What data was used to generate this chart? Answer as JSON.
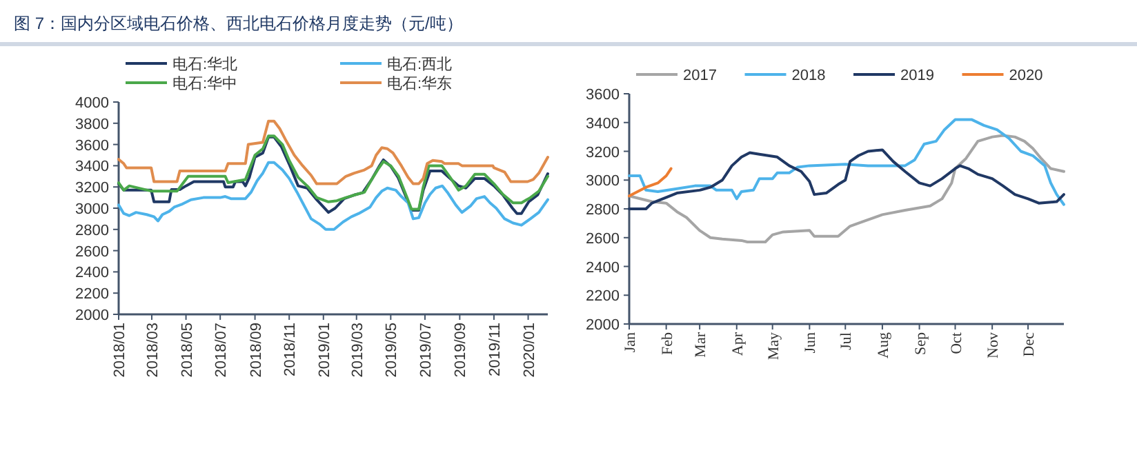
{
  "chart_data": [
    {
      "type": "line",
      "title": "图 7：国内分区域电石价格、西北电石价格月度走势（元/吨）",
      "legend": "top",
      "xlim": [
        "2018-01-01",
        "2020-02-05"
      ],
      "ylim": [
        2000,
        4000
      ],
      "xticks": [
        {
          "value": "2018-01",
          "label": "2018/01"
        },
        {
          "value": "2018-03",
          "label": "2018/03"
        },
        {
          "value": "2018-05",
          "label": "2018/05"
        },
        {
          "value": "2018-07",
          "label": "2018/07"
        },
        {
          "value": "2018-09",
          "label": "2018/09"
        },
        {
          "value": "2018-11",
          "label": "2018/11"
        },
        {
          "value": "2019-01",
          "label": "2019/01"
        },
        {
          "value": "2019-03",
          "label": "2019/03"
        },
        {
          "value": "2019-05",
          "label": "2019/05"
        },
        {
          "value": "2019-07",
          "label": "2019/07"
        },
        {
          "value": "2019-09",
          "label": "2019/09"
        },
        {
          "value": "2019-11",
          "label": "2019/11"
        },
        {
          "value": "2020-01",
          "label": "2020/01"
        }
      ],
      "yticks": [
        2000,
        2200,
        2400,
        2600,
        2800,
        3000,
        3200,
        3400,
        3600,
        3800,
        4000
      ],
      "series": [
        {
          "name": "电石:华北",
          "color": "#1f3864",
          "x": [
            "2018-01-01",
            "2018-01-10",
            "2018-02-28",
            "2018-03-05",
            "2018-04-01",
            "2018-04-05",
            "2018-04-20",
            "2018-05-01",
            "2018-05-15",
            "2018-07-07",
            "2018-07-10",
            "2018-07-24",
            "2018-07-28",
            "2018-08-10",
            "2018-08-15",
            "2018-08-22",
            "2018-09-01",
            "2018-09-15",
            "2018-09-25",
            "2018-10-05",
            "2018-10-18",
            "2018-11-01",
            "2018-11-17",
            "2018-12-03",
            "2018-12-20",
            "2019-01-10",
            "2019-01-22",
            "2019-02-07",
            "2019-02-25",
            "2019-03-12",
            "2019-03-28",
            "2019-04-10",
            "2019-04-18",
            "2019-05-01",
            "2019-05-14",
            "2019-05-30",
            "2019-06-07",
            "2019-06-20",
            "2019-06-28",
            "2019-07-10",
            "2019-07-31",
            "2019-08-17",
            "2019-08-30",
            "2019-09-12",
            "2019-09-28",
            "2019-10-15",
            "2019-11-01",
            "2019-11-17",
            "2019-12-04",
            "2019-12-12",
            "2019-12-20",
            "2020-01-02",
            "2020-01-18",
            "2020-02-05"
          ],
          "values": [
            3230,
            3170,
            3170,
            3060,
            3060,
            3175,
            3175,
            3210,
            3250,
            3250,
            3200,
            3200,
            3250,
            3250,
            3210,
            3290,
            3480,
            3520,
            3670,
            3670,
            3580,
            3415,
            3210,
            3190,
            3080,
            2960,
            3000,
            3090,
            3125,
            3145,
            3270,
            3390,
            3455,
            3395,
            3290,
            3085,
            2980,
            2980,
            3170,
            3350,
            3350,
            3270,
            3210,
            3190,
            3280,
            3280,
            3210,
            3125,
            3000,
            2950,
            2950,
            3060,
            3125,
            3325
          ]
        },
        {
          "name": "电石:西北",
          "color": "#4db3ea",
          "x": [
            "2018-01-01",
            "2018-01-10",
            "2018-01-20",
            "2018-02-01",
            "2018-02-20",
            "2018-03-05",
            "2018-03-12",
            "2018-03-20",
            "2018-04-01",
            "2018-04-10",
            "2018-04-25",
            "2018-05-10",
            "2018-06-01",
            "2018-07-01",
            "2018-07-10",
            "2018-07-20",
            "2018-08-15",
            "2018-08-25",
            "2018-09-05",
            "2018-09-15",
            "2018-09-25",
            "2018-10-05",
            "2018-10-20",
            "2018-11-01",
            "2018-11-15",
            "2018-11-25",
            "2018-12-10",
            "2018-12-25",
            "2019-01-05",
            "2019-01-20",
            "2019-02-05",
            "2019-02-20",
            "2019-03-05",
            "2019-03-25",
            "2019-04-05",
            "2019-04-15",
            "2019-04-25",
            "2019-05-10",
            "2019-05-20",
            "2019-06-01",
            "2019-06-10",
            "2019-06-20",
            "2019-07-01",
            "2019-07-10",
            "2019-07-20",
            "2019-08-01",
            "2019-08-10",
            "2019-08-25",
            "2019-09-05",
            "2019-09-20",
            "2019-10-01",
            "2019-10-15",
            "2019-10-25",
            "2019-11-05",
            "2019-11-20",
            "2019-12-05",
            "2019-12-20",
            "2020-01-05",
            "2020-01-20",
            "2020-02-05"
          ],
          "values": [
            3030,
            2950,
            2930,
            2960,
            2940,
            2920,
            2880,
            2940,
            2970,
            3010,
            3040,
            3080,
            3100,
            3100,
            3110,
            3090,
            3090,
            3150,
            3260,
            3330,
            3430,
            3430,
            3360,
            3280,
            3150,
            3050,
            2900,
            2850,
            2800,
            2800,
            2870,
            2920,
            2950,
            3010,
            3100,
            3160,
            3190,
            3170,
            3110,
            3050,
            2900,
            2910,
            3050,
            3130,
            3190,
            3210,
            3150,
            3030,
            2960,
            3020,
            3090,
            3110,
            3050,
            3000,
            2900,
            2860,
            2840,
            2900,
            2960,
            3080
          ]
        },
        {
          "name": "电石:华中",
          "color": "#4aa84a",
          "x": [
            "2018-01-01",
            "2018-01-10",
            "2018-01-20",
            "2018-03-01",
            "2018-04-15",
            "2018-04-25",
            "2018-05-05",
            "2018-07-10",
            "2018-07-15",
            "2018-08-15",
            "2018-09-01",
            "2018-09-15",
            "2018-09-25",
            "2018-10-05",
            "2018-10-20",
            "2018-11-01",
            "2018-11-17",
            "2018-12-05",
            "2018-12-20",
            "2019-01-10",
            "2019-01-25",
            "2019-02-10",
            "2019-03-01",
            "2019-03-15",
            "2019-03-28",
            "2019-04-10",
            "2019-04-18",
            "2019-05-01",
            "2019-05-15",
            "2019-05-30",
            "2019-06-07",
            "2019-06-20",
            "2019-06-28",
            "2019-07-08",
            "2019-07-31",
            "2019-08-15",
            "2019-08-30",
            "2019-09-12",
            "2019-09-28",
            "2019-10-15",
            "2019-11-01",
            "2019-11-17",
            "2019-12-05",
            "2019-12-20",
            "2020-01-05",
            "2020-01-20",
            "2020-02-05"
          ],
          "values": [
            3240,
            3170,
            3210,
            3160,
            3160,
            3230,
            3300,
            3300,
            3240,
            3270,
            3500,
            3560,
            3680,
            3680,
            3600,
            3450,
            3290,
            3200,
            3100,
            3060,
            3070,
            3100,
            3130,
            3150,
            3270,
            3380,
            3440,
            3400,
            3300,
            3100,
            2990,
            2990,
            3200,
            3400,
            3400,
            3290,
            3170,
            3210,
            3320,
            3320,
            3230,
            3130,
            3050,
            3050,
            3100,
            3160,
            3300
          ]
        },
        {
          "name": "电石:华东",
          "color": "#e08c4d",
          "x": [
            "2018-01-01",
            "2018-01-10",
            "2018-01-15",
            "2018-02-28",
            "2018-03-05",
            "2018-04-15",
            "2018-04-20",
            "2018-07-10",
            "2018-07-15",
            "2018-08-15",
            "2018-08-20",
            "2018-09-15",
            "2018-09-25",
            "2018-10-05",
            "2018-10-15",
            "2018-10-25",
            "2018-11-10",
            "2018-11-25",
            "2018-12-10",
            "2018-12-20",
            "2019-01-25",
            "2019-02-10",
            "2019-02-25",
            "2019-03-15",
            "2019-03-28",
            "2019-04-05",
            "2019-04-15",
            "2019-04-25",
            "2019-05-05",
            "2019-05-20",
            "2019-06-01",
            "2019-06-10",
            "2019-06-20",
            "2019-06-28",
            "2019-07-05",
            "2019-07-15",
            "2019-07-31",
            "2019-08-05",
            "2019-08-30",
            "2019-09-05",
            "2019-10-30",
            "2019-11-01",
            "2019-11-20",
            "2019-12-01",
            "2019-12-31",
            "2020-01-10",
            "2020-01-20",
            "2020-02-05"
          ],
          "values": [
            3460,
            3420,
            3380,
            3380,
            3250,
            3250,
            3350,
            3350,
            3420,
            3420,
            3600,
            3620,
            3820,
            3820,
            3750,
            3650,
            3500,
            3400,
            3310,
            3230,
            3230,
            3300,
            3330,
            3360,
            3400,
            3500,
            3570,
            3560,
            3520,
            3400,
            3290,
            3230,
            3230,
            3280,
            3420,
            3450,
            3440,
            3420,
            3420,
            3400,
            3400,
            3380,
            3340,
            3250,
            3250,
            3270,
            3330,
            3480
          ]
        }
      ]
    },
    {
      "type": "line",
      "legend": "top",
      "xlim": [
        "--01-01",
        "--12-31"
      ],
      "ylim": [
        2000,
        3600
      ],
      "xticks": [
        {
          "value": "--01-01",
          "label": "Jan"
        },
        {
          "value": "--02-01",
          "label": "Feb"
        },
        {
          "value": "--03-01",
          "label": "Mar"
        },
        {
          "value": "--04-01",
          "label": "Apr"
        },
        {
          "value": "--05-01",
          "label": "May"
        },
        {
          "value": "--06-01",
          "label": "Jun"
        },
        {
          "value": "--07-01",
          "label": "Jul"
        },
        {
          "value": "--08-01",
          "label": "Aug"
        },
        {
          "value": "--09-01",
          "label": "Sep"
        },
        {
          "value": "--10-01",
          "label": "Oct"
        },
        {
          "value": "--11-01",
          "label": "Nov"
        },
        {
          "value": "--12-01",
          "label": "Dec"
        }
      ],
      "yticks": [
        2000,
        2200,
        2400,
        2600,
        2800,
        3000,
        3200,
        3400,
        3600
      ],
      "series": [
        {
          "name": "2017",
          "color": "#a5a5a5",
          "x": [
            "--01-01",
            "--01-20",
            "--02-01",
            "--02-10",
            "--02-18",
            "--03-01",
            "--03-10",
            "--03-20",
            "--04-05",
            "--04-10",
            "--04-25",
            "--05-01",
            "--05-10",
            "--06-01",
            "--06-05",
            "--06-25",
            "--07-05",
            "--07-15",
            "--08-01",
            "--08-20",
            "--09-10",
            "--09-20",
            "--09-28",
            "--10-01",
            "--10-10",
            "--10-20",
            "--11-01",
            "--11-10",
            "--11-20",
            "--11-28",
            "--12-05",
            "--12-12",
            "--12-20",
            "--12-31"
          ],
          "values": [
            2890,
            2850,
            2840,
            2780,
            2740,
            2650,
            2600,
            2590,
            2580,
            2570,
            2570,
            2620,
            2640,
            2650,
            2610,
            2610,
            2680,
            2710,
            2760,
            2790,
            2820,
            2870,
            2980,
            3080,
            3150,
            3270,
            3300,
            3310,
            3300,
            3270,
            3220,
            3150,
            3080,
            3060
          ]
        },
        {
          "name": "2018",
          "color": "#4db3ea",
          "x": [
            "--01-01",
            "--01-10",
            "--01-15",
            "--01-25",
            "--02-10",
            "--02-25",
            "--03-10",
            "--03-15",
            "--03-28",
            "--04-01",
            "--04-05",
            "--04-15",
            "--04-20",
            "--05-01",
            "--05-05",
            "--05-15",
            "--05-22",
            "--06-01",
            "--07-01",
            "--07-20",
            "--08-20",
            "--08-28",
            "--09-05",
            "--09-15",
            "--09-22",
            "--10-01",
            "--10-15",
            "--10-25",
            "--11-05",
            "--11-15",
            "--11-25",
            "--12-05",
            "--12-15",
            "--12-20",
            "--12-25",
            "--12-31"
          ],
          "values": [
            3030,
            3030,
            2930,
            2920,
            2940,
            2960,
            2960,
            2930,
            2930,
            2870,
            2920,
            2930,
            3010,
            3010,
            3050,
            3050,
            3090,
            3100,
            3110,
            3100,
            3100,
            3140,
            3250,
            3270,
            3350,
            3420,
            3420,
            3380,
            3350,
            3290,
            3200,
            3170,
            3100,
            2980,
            2900,
            2830
          ]
        },
        {
          "name": "2019",
          "color": "#203864",
          "x": [
            "--01-01",
            "--01-15",
            "--01-20",
            "--02-01",
            "--02-10",
            "--03-01",
            "--03-10",
            "--03-20",
            "--03-28",
            "--04-05",
            "--04-12",
            "--04-20",
            "--05-05",
            "--05-15",
            "--05-25",
            "--06-01",
            "--06-05",
            "--06-15",
            "--06-25",
            "--07-01",
            "--07-05",
            "--07-12",
            "--07-20",
            "--08-01",
            "--08-10",
            "--08-20",
            "--09-01",
            "--09-10",
            "--09-20",
            "--10-01",
            "--10-05",
            "--10-12",
            "--10-20",
            "--11-01",
            "--11-10",
            "--11-20",
            "--12-01",
            "--12-10",
            "--12-25",
            "--12-31"
          ],
          "values": [
            2800,
            2800,
            2840,
            2880,
            2910,
            2930,
            2950,
            3000,
            3100,
            3160,
            3190,
            3180,
            3160,
            3100,
            3060,
            2990,
            2900,
            2910,
            2970,
            3000,
            3130,
            3170,
            3200,
            3210,
            3130,
            3060,
            2980,
            2960,
            3010,
            3080,
            3100,
            3080,
            3040,
            3010,
            2960,
            2900,
            2870,
            2840,
            2850,
            2900
          ]
        },
        {
          "name": "2020",
          "color": "#ed7d31",
          "x": [
            "--01-01",
            "--01-15",
            "--01-25",
            "--02-01",
            "--02-05"
          ],
          "values": [
            2890,
            2950,
            2980,
            3030,
            3080
          ]
        }
      ]
    }
  ]
}
